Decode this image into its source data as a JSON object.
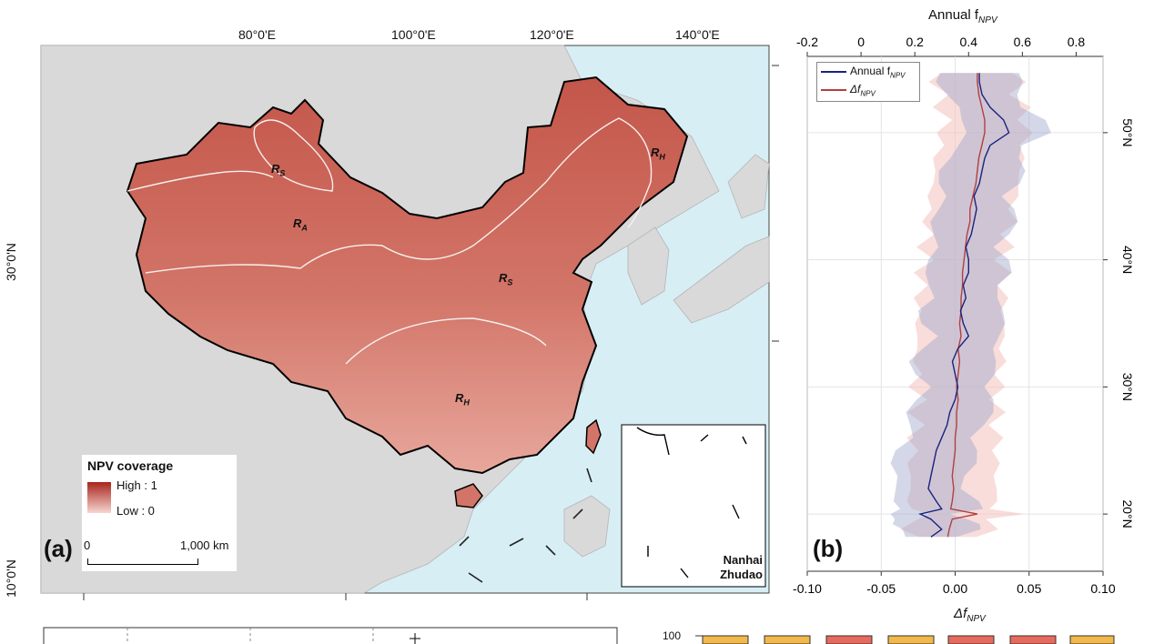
{
  "panel_a": {
    "label": "(a)",
    "lon_ticks": [
      "80°0'E",
      "100°0'E",
      "120°0'E",
      "140°0'E"
    ],
    "lat_ticks": [
      "30°0'N",
      "10°0'N"
    ],
    "legend": {
      "title": "NPV coverage",
      "high": "High : 1",
      "low": "Low : 0",
      "scale_zero": "0",
      "scale_end": "1,000 km"
    },
    "regions": [
      {
        "base": "R",
        "sub": "S"
      },
      {
        "base": "R",
        "sub": "A"
      },
      {
        "base": "R",
        "sub": "S"
      },
      {
        "base": "R",
        "sub": "H"
      },
      {
        "base": "R",
        "sub": "H"
      }
    ],
    "inset_label_1": "Nanhai",
    "inset_label_2": "Zhudao",
    "colors": {
      "ocean": "#d7eef5",
      "land": "#d9d9d9",
      "china_dark": "#c4564a",
      "china_light": "#e8a79c"
    }
  },
  "panel_b": {
    "label": "(b)",
    "top_axis_title_base": "Annual f",
    "top_axis_title_sub": "NPV",
    "bottom_axis_title_base": "Δf",
    "bottom_axis_title_sub": "NPV",
    "legend": [
      {
        "base": "Annual f",
        "sub": "NPV",
        "color": "#1a237e"
      },
      {
        "base": "Δf",
        "sub": "NPV",
        "color": "#b04040"
      }
    ],
    "chart_data": {
      "type": "line",
      "y_axis": "latitude (°N)",
      "ylim": [
        15.5,
        56
      ],
      "top_xlim": [
        -0.2,
        0.9
      ],
      "bottom_xlim": [
        -0.1,
        0.1
      ],
      "top_ticks": [
        "-0.2",
        "0",
        "0.2",
        "0.4",
        "0.6",
        "0.8"
      ],
      "bottom_ticks": [
        "-0.10",
        "-0.05",
        "0.00",
        "0.05",
        "0.10"
      ],
      "lat_ticks": [
        "50°N",
        "40°N",
        "30°N",
        "20°N"
      ],
      "grid": true,
      "legend_position": "top-left",
      "series": [
        {
          "name": "Annual fNPV",
          "color": "#1a237e",
          "lat": [
            18.2,
            18.8,
            19.2,
            19.6,
            20.0,
            20.4,
            21.0,
            22.0,
            23.0,
            24.0,
            25.0,
            26.0,
            27.0,
            28.0,
            29.0,
            30.0,
            31.0,
            32.0,
            33.0,
            34.0,
            35.0,
            36.0,
            37.0,
            38.0,
            39.0,
            40.0,
            41.0,
            42.0,
            43.0,
            44.0,
            45.0,
            46.0,
            47.0,
            48.0,
            49.0,
            50.0,
            51.0,
            52.0,
            53.0,
            54.0,
            54.7
          ],
          "value": [
            0.26,
            0.3,
            0.28,
            0.26,
            0.22,
            0.3,
            0.28,
            0.25,
            0.26,
            0.27,
            0.28,
            0.3,
            0.32,
            0.33,
            0.35,
            0.36,
            0.35,
            0.34,
            0.36,
            0.4,
            0.38,
            0.37,
            0.39,
            0.38,
            0.4,
            0.4,
            0.39,
            0.41,
            0.42,
            0.43,
            0.42,
            0.44,
            0.45,
            0.46,
            0.48,
            0.55,
            0.53,
            0.48,
            0.45,
            0.44,
            0.44
          ]
        },
        {
          "name": "ΔfNPV",
          "color": "#b04040",
          "lat": [
            18.2,
            18.8,
            19.6,
            20.0,
            20.4,
            21.0,
            22.0,
            23.0,
            24.0,
            25.0,
            26.0,
            27.0,
            28.0,
            29.0,
            30.0,
            31.0,
            32.0,
            33.0,
            34.0,
            35.0,
            36.0,
            37.0,
            38.0,
            39.0,
            40.0,
            41.0,
            42.0,
            43.0,
            44.0,
            45.0,
            46.0,
            47.0,
            48.0,
            49.0,
            50.0,
            51.0,
            52.0,
            53.0,
            54.0,
            54.7
          ],
          "value": [
            -0.005,
            -0.004,
            -0.002,
            0.015,
            -0.003,
            -0.002,
            -0.001,
            -0.002,
            -0.001,
            0.0,
            0.0,
            0.001,
            0.001,
            0.002,
            0.001,
            0.002,
            0.003,
            0.002,
            0.004,
            0.003,
            0.004,
            0.004,
            0.005,
            0.005,
            0.006,
            0.007,
            0.008,
            0.01,
            0.01,
            0.012,
            0.014,
            0.015,
            0.016,
            0.018,
            0.02,
            0.02,
            0.018,
            0.016,
            0.015,
            0.015
          ]
        }
      ]
    }
  },
  "bottom_strip": {
    "label_100": "100"
  }
}
